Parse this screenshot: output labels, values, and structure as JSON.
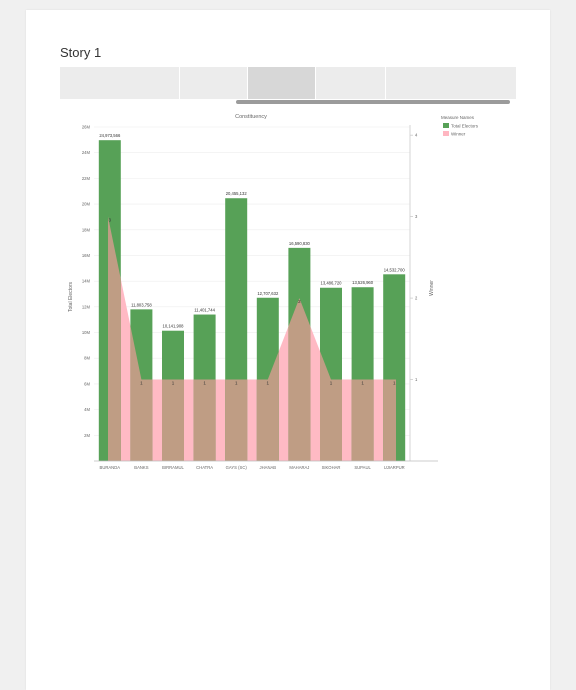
{
  "story": {
    "title": "Story 1",
    "tabs": [
      {
        "label": ""
      },
      {
        "label": ""
      },
      {
        "label": "",
        "active": true
      },
      {
        "label": ""
      },
      {
        "label": ""
      }
    ]
  },
  "colors": {
    "total_electors": "#57a157",
    "winner": "#ffb6c1",
    "overlap": "#bf9d84"
  },
  "chart_data": {
    "type": "bar",
    "title": "Constituency",
    "xlabel": "",
    "ylabel": "Total Electors",
    "y2label": "Winner",
    "ylim": [
      0,
      26000000
    ],
    "y2lim": [
      0,
      4.1
    ],
    "yticks": [
      "2M",
      "4M",
      "6M",
      "8M",
      "10M",
      "12M",
      "14M",
      "16M",
      "18M",
      "20M",
      "22M",
      "24M",
      "26M"
    ],
    "y2ticks": [
      "1",
      "2",
      "3",
      "4"
    ],
    "categories": [
      "BURANDA",
      "BANKS",
      "BIRRAMUL",
      "CHATRA",
      "GAYS (SC)",
      "JHANAB",
      "MAHARAJ",
      "SIKOHAR",
      "SUPAUL",
      "UJIARPUR"
    ],
    "x_tick_labels": [
      "BURANDA",
      "BANKS",
      "BIRRAMUL",
      "CHATRA",
      "GAYS (SC)",
      "JHANAB",
      "MAHARAJ",
      "SIKOHAR",
      "SUPAUL",
      "UJIARPUR"
    ],
    "series": [
      {
        "name": "Total Electors",
        "values": [
          24973566,
          11803758,
          10141908,
          11401744,
          20455132,
          12707632,
          16590830,
          13486720,
          13526960,
          14532700
        ],
        "labels": [
          "24,973,566",
          "11,803,758",
          "10,141,908",
          "11,401,744",
          "20,455,132",
          "12,707,632",
          "16,590,830",
          "13,486,720",
          "13,526,960",
          "14,532,700"
        ]
      },
      {
        "name": "Winner",
        "axis": "secondary",
        "values": [
          3,
          1,
          1,
          1,
          1,
          1,
          2,
          1,
          1,
          1
        ],
        "labels": [
          "3",
          "1",
          "1",
          "1",
          "1",
          "1",
          "2",
          "1",
          "1",
          "1"
        ]
      }
    ],
    "legend": {
      "title": "Measure Names",
      "entries": [
        "Total Electors",
        "Winner"
      ],
      "placement": "top-right"
    },
    "grid": true
  }
}
